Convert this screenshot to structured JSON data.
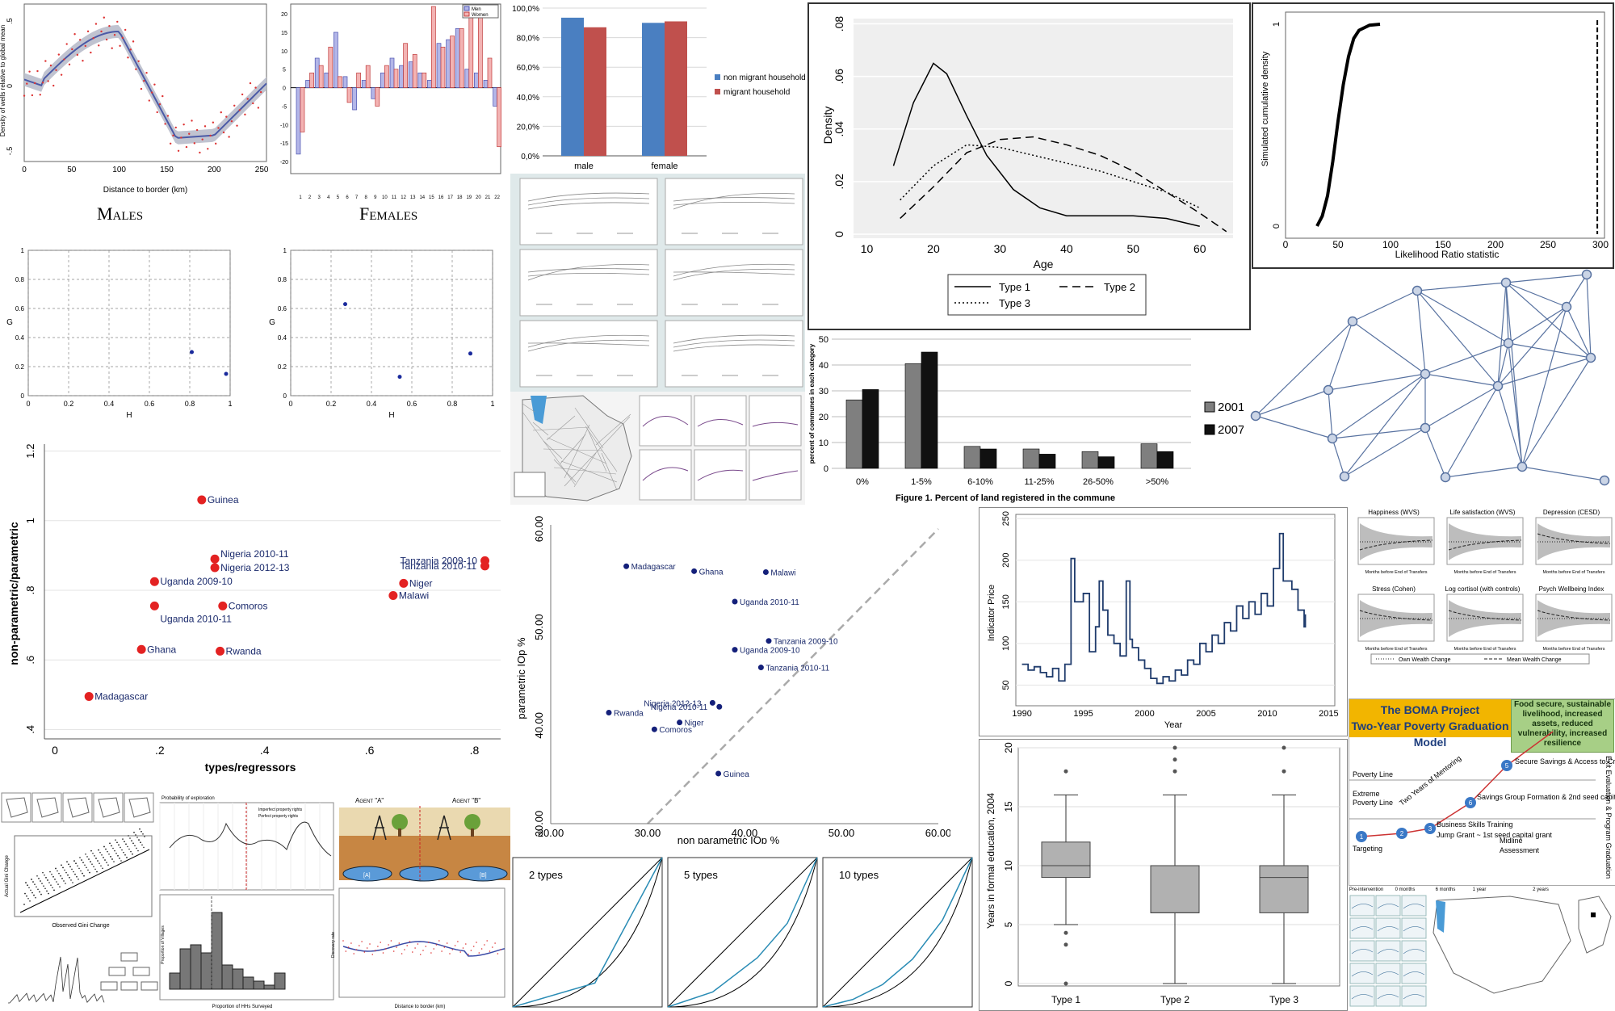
{
  "males_females": {
    "males_title": "Males",
    "females_title": "Females",
    "males_ylabel": "Density of wells relative to global mean",
    "males_xlabel": "Distance to border (km)",
    "males_xticks": [
      "0",
      "50",
      "100",
      "150",
      "200",
      "250"
    ],
    "males_yticks": [
      ".5",
      "0",
      "-.5"
    ],
    "females_legend": [
      "Men",
      "Women"
    ],
    "females_yticks": [
      "20",
      "15",
      "10",
      "5",
      "0",
      "-5",
      "-10",
      "-15",
      "-20"
    ],
    "females_xticks": [
      "1",
      "2",
      "3",
      "4",
      "5",
      "6",
      "7",
      "8",
      "9",
      "10",
      "11",
      "12",
      "13",
      "14",
      "15",
      "16",
      "17",
      "18",
      "19",
      "20",
      "21",
      "22"
    ]
  },
  "chart_data": [
    {
      "id": "migrant-bars",
      "type": "bar",
      "categories": [
        "male",
        "female"
      ],
      "series": [
        {
          "name": "non migrant household",
          "values": [
            93.5,
            90
          ],
          "color": "#4a7fc1"
        },
        {
          "name": "migrant household",
          "values": [
            87,
            91
          ],
          "color": "#c0504d"
        }
      ],
      "yticks": [
        "0,0%",
        "20,0%",
        "40,0%",
        "60,0%",
        "80,0%",
        "100,0%"
      ],
      "ylim": [
        0,
        100
      ]
    },
    {
      "id": "density-age",
      "type": "line",
      "xlabel": "Age",
      "ylabel": "Density",
      "xticks": [
        "10",
        "20",
        "30",
        "40",
        "50",
        "60"
      ],
      "yticks": [
        "0",
        ".02",
        ".04",
        ".06",
        ".08"
      ],
      "xlim": [
        8,
        65
      ],
      "ylim": [
        0,
        0.08
      ],
      "series": [
        {
          "name": "Type 1",
          "dash": "",
          "points": [
            [
              14,
              0.026
            ],
            [
              17,
              0.05
            ],
            [
              20,
              0.065
            ],
            [
              22,
              0.061
            ],
            [
              25,
              0.045
            ],
            [
              28,
              0.03
            ],
            [
              32,
              0.017
            ],
            [
              36,
              0.01
            ],
            [
              40,
              0.007
            ],
            [
              45,
              0.007
            ],
            [
              50,
              0.007
            ],
            [
              55,
              0.006
            ],
            [
              60,
              0.003
            ]
          ]
        },
        {
          "name": "Type 2",
          "dash": "10 6",
          "points": [
            [
              15,
              0.006
            ],
            [
              20,
              0.018
            ],
            [
              25,
              0.031
            ],
            [
              30,
              0.036
            ],
            [
              35,
              0.037
            ],
            [
              40,
              0.034
            ],
            [
              45,
              0.03
            ],
            [
              50,
              0.024
            ],
            [
              55,
              0.016
            ],
            [
              60,
              0.008
            ],
            [
              64,
              0.001
            ]
          ]
        },
        {
          "name": "Type 3",
          "dash": "2 3",
          "points": [
            [
              15,
              0.013
            ],
            [
              20,
              0.026
            ],
            [
              25,
              0.034
            ],
            [
              30,
              0.033
            ],
            [
              35,
              0.03
            ],
            [
              40,
              0.027
            ],
            [
              45,
              0.024
            ],
            [
              50,
              0.02
            ],
            [
              55,
              0.016
            ],
            [
              60,
              0.01
            ]
          ]
        }
      ]
    },
    {
      "id": "lr-cdf",
      "type": "line",
      "xlabel": "Likelihood Ratio statistic",
      "ylabel": "Simulated cumulative density",
      "xticks": [
        "0",
        "50",
        "100",
        "150",
        "200",
        "250",
        "300"
      ],
      "yticks": [
        "0",
        "1"
      ],
      "xlim": [
        0,
        300
      ],
      "ylim": [
        0,
        1
      ],
      "vline": 297,
      "series": [
        {
          "name": "cdf",
          "points": [
            [
              30,
              0
            ],
            [
              35,
              0.05
            ],
            [
              40,
              0.15
            ],
            [
              45,
              0.32
            ],
            [
              50,
              0.52
            ],
            [
              55,
              0.7
            ],
            [
              60,
              0.84
            ],
            [
              65,
              0.93
            ],
            [
              70,
              0.97
            ],
            [
              80,
              0.995
            ],
            [
              90,
              1
            ]
          ]
        }
      ]
    },
    {
      "id": "land-registered",
      "type": "bar",
      "title": "Figure 1. Percent of land registered in the commune",
      "ylabel": "percent of communes in each category",
      "categories": [
        "0%",
        "1-5%",
        "6-10%",
        "11-25%",
        "26-50%",
        ">50%"
      ],
      "series": [
        {
          "name": "2001",
          "values": [
            26.5,
            40.5,
            8.5,
            7.5,
            6.5,
            9.5
          ],
          "color": "#7f7f7f"
        },
        {
          "name": "2007",
          "values": [
            30.5,
            45,
            7.5,
            5.5,
            4.5,
            6.5
          ],
          "color": "#111111"
        }
      ],
      "yticks": [
        "0",
        "10",
        "20",
        "30",
        "40",
        "50"
      ],
      "ylim": [
        0,
        50
      ]
    },
    {
      "id": "iop-types",
      "type": "scatter",
      "xlabel": "types/regressors",
      "ylabel": "non-parametric/parametric",
      "xticks": [
        "0",
        ".2",
        ".4",
        ".6",
        ".8"
      ],
      "yticks": [
        ".4",
        ".6",
        ".8",
        "1",
        "1.2"
      ],
      "xlim": [
        -0.02,
        0.85
      ],
      "ylim": [
        0.38,
        1.22
      ],
      "points": [
        {
          "label": "Guinea",
          "x": 0.28,
          "y": 1.06
        },
        {
          "label": "Nigeria 2010-11",
          "x": 0.305,
          "y": 0.89
        },
        {
          "label": "Nigeria 2012-13",
          "x": 0.305,
          "y": 0.865
        },
        {
          "label": "Uganda 2009-10",
          "x": 0.19,
          "y": 0.825
        },
        {
          "label": "Uganda 2010-11",
          "x": 0.19,
          "y": 0.755
        },
        {
          "label": "Comoros",
          "x": 0.32,
          "y": 0.755
        },
        {
          "label": "Ghana",
          "x": 0.165,
          "y": 0.63
        },
        {
          "label": "Rwanda",
          "x": 0.315,
          "y": 0.625
        },
        {
          "label": "Madagascar",
          "x": 0.065,
          "y": 0.495
        },
        {
          "label": "Tanzania 2009-10",
          "x": 0.82,
          "y": 0.885
        },
        {
          "label": "Tanzania 2010-11",
          "x": 0.82,
          "y": 0.87
        },
        {
          "label": "Niger",
          "x": 0.665,
          "y": 0.82
        },
        {
          "label": "Malawi",
          "x": 0.645,
          "y": 0.785
        }
      ]
    },
    {
      "id": "iop-compare",
      "type": "scatter",
      "xlabel": "non parametric IOp %",
      "ylabel": "parametric IOp %",
      "xticks": [
        "20.00",
        "30.00",
        "40.00",
        "50.00",
        "60.00"
      ],
      "yticks": [
        "30.00",
        "40.00",
        "50.00",
        "60.00"
      ],
      "xlim": [
        20,
        60
      ],
      "ylim": [
        30,
        60
      ],
      "points": [
        {
          "label": "Madagascar",
          "x": 27.8,
          "y": 56.2
        },
        {
          "label": "Ghana",
          "x": 34.8,
          "y": 55.7
        },
        {
          "label": "Malawi",
          "x": 42.2,
          "y": 55.6
        },
        {
          "label": "Uganda 2010-11",
          "x": 39,
          "y": 52.6
        },
        {
          "label": "Tanzania 2009-10",
          "x": 42.5,
          "y": 48.6
        },
        {
          "label": "Uganda 2009-10",
          "x": 39,
          "y": 47.7
        },
        {
          "label": "Tanzania 2010-11",
          "x": 41.7,
          "y": 45.9
        },
        {
          "label": "Nigeria 2012-13",
          "x": 36.7,
          "y": 42.3
        },
        {
          "label": "Nigeria 2010-11",
          "x": 37.4,
          "y": 41.9
        },
        {
          "label": "Rwanda",
          "x": 26,
          "y": 41.3
        },
        {
          "label": "Niger",
          "x": 33.3,
          "y": 40.3
        },
        {
          "label": "Comoros",
          "x": 30.7,
          "y": 39.6
        },
        {
          "label": "Guinea",
          "x": 37.3,
          "y": 35.1
        }
      ]
    },
    {
      "id": "indicator-price",
      "type": "line",
      "xlabel": "Year",
      "ylabel": "Indicator Price",
      "xticks": [
        "1990",
        "1995",
        "2000",
        "2005",
        "2010",
        "2015"
      ],
      "yticks": [
        "50",
        "100",
        "150",
        "200",
        "250"
      ],
      "xlim": [
        1989.5,
        2015.5
      ],
      "ylim": [
        30,
        255
      ],
      "series": [
        {
          "name": "price",
          "points": [
            [
              1990,
              75
            ],
            [
              1990.5,
              68
            ],
            [
              1991,
              72
            ],
            [
              1991.5,
              65
            ],
            [
              1992,
              60
            ],
            [
              1992.5,
              70
            ],
            [
              1993,
              55
            ],
            [
              1993.5,
              75
            ],
            [
              1994,
              202
            ],
            [
              1994.3,
              150
            ],
            [
              1995,
              160
            ],
            [
              1995.5,
              90
            ],
            [
              1996,
              120
            ],
            [
              1996.3,
              175
            ],
            [
              1996.6,
              140
            ],
            [
              1997,
              110
            ],
            [
              1997.5,
              100
            ],
            [
              1998,
              85
            ],
            [
              1998.5,
              175
            ],
            [
              1998.8,
              105
            ],
            [
              1999,
              95
            ],
            [
              1999.5,
              80
            ],
            [
              2000,
              70
            ],
            [
              2000.5,
              58
            ],
            [
              2001,
              52
            ],
            [
              2001.5,
              60
            ],
            [
              2002,
              55
            ],
            [
              2002.5,
              68
            ],
            [
              2003,
              62
            ],
            [
              2003.5,
              80
            ],
            [
              2004,
              75
            ],
            [
              2004.5,
              100
            ],
            [
              2005,
              90
            ],
            [
              2005.5,
              110
            ],
            [
              2006,
              100
            ],
            [
              2006.5,
              125
            ],
            [
              2007,
              115
            ],
            [
              2007.5,
              145
            ],
            [
              2008,
              130
            ],
            [
              2008.5,
              150
            ],
            [
              2009,
              135
            ],
            [
              2009.5,
              160
            ],
            [
              2010,
              145
            ],
            [
              2010.5,
              190
            ],
            [
              2011,
              232
            ],
            [
              2011.3,
              175
            ],
            [
              2012,
              165
            ],
            [
              2012.5,
              140
            ],
            [
              2013,
              120
            ],
            [
              2013.1,
              135
            ]
          ]
        }
      ]
    },
    {
      "id": "years-education",
      "type": "boxplot",
      "ylabel": "Years in formal education, 2004",
      "categories": [
        "Type 1",
        "Type 2",
        "Type 3"
      ],
      "yticks": [
        "0",
        "5",
        "10",
        "15",
        "20"
      ],
      "ylim": [
        0,
        20
      ],
      "boxes": [
        {
          "min": 5,
          "q1": 9,
          "median": 10,
          "q3": 12,
          "max": 16,
          "outliers": [
            18,
            4.3,
            3.3,
            0
          ]
        },
        {
          "min": 0,
          "q1": 6,
          "median": 6,
          "q3": 10,
          "max": 16,
          "outliers": [
            20,
            19,
            18
          ]
        },
        {
          "min": 0,
          "q1": 6,
          "median": 9,
          "q3": 10,
          "max": 16,
          "outliers": [
            20,
            18
          ]
        }
      ]
    },
    {
      "id": "gh-left",
      "type": "scatter",
      "xlabel": "H",
      "ylabel": "G",
      "xticks": [
        "0",
        "0.2",
        "0.4",
        "0.6",
        "0.8",
        "1"
      ],
      "yticks": [
        "0",
        "0.2",
        "0.4",
        "0.6",
        "0.8",
        "1"
      ],
      "points": [
        {
          "x": 0.81,
          "y": 0.3
        },
        {
          "x": 0.98,
          "y": 0.15
        }
      ]
    },
    {
      "id": "gh-right",
      "type": "scatter",
      "xlabel": "H",
      "ylabel": "G",
      "xticks": [
        "0",
        "0.2",
        "0.4",
        "0.6",
        "0.8",
        "1"
      ],
      "yticks": [
        "0",
        "0.2",
        "0.4",
        "0.6",
        "0.8",
        "1"
      ],
      "points": [
        {
          "x": 0.27,
          "y": 0.63
        },
        {
          "x": 0.54,
          "y": 0.13
        },
        {
          "x": 0.89,
          "y": 0.29
        }
      ]
    }
  ],
  "lorenz": [
    {
      "label": "2 types",
      "points": [
        [
          0,
          0
        ],
        [
          0.55,
          0.16
        ],
        [
          1,
          1
        ]
      ]
    },
    {
      "label": "5 types",
      "points": [
        [
          0,
          0
        ],
        [
          0.3,
          0.1
        ],
        [
          0.6,
          0.33
        ],
        [
          0.8,
          0.56
        ],
        [
          1,
          1
        ]
      ]
    },
    {
      "label": "10 types",
      "points": [
        [
          0,
          0
        ],
        [
          0.2,
          0.05
        ],
        [
          0.4,
          0.15
        ],
        [
          0.6,
          0.32
        ],
        [
          0.8,
          0.58
        ],
        [
          1,
          1
        ]
      ]
    }
  ],
  "legend_2001": "2001",
  "legend_2007": "2007",
  "wellbeing": {
    "titles": [
      "Happiness (WVS)",
      "Life satisfaction (WVS)",
      "Depression (CESD)",
      "Stress (Cohen)",
      "Log cortisol (with controls)",
      "Psych Wellbeing Index"
    ],
    "xlabel": "Months before End of Transfers",
    "legend": [
      "Own Wealth Change",
      "Mean Wealth Change"
    ]
  },
  "boma": {
    "title": "The BOMA Project\nTwo-Year Poverty Graduation Model",
    "goal": "Food secure, sustainable livelihood, increased assets, reduced vulnerability, increased resilience",
    "exit": "Exit Evaluation & Program Graduation",
    "poverty_line": "Poverty Line",
    "extreme_line": "Extreme\nPoverty Line",
    "mentoring": "Two Years of Mentoring",
    "steps": [
      "Targeting",
      "Business Skills Training",
      "Jump Grant ~ 1st seed capital grant",
      "Savings Group Formation & 2nd seed capital grant",
      "Secure Savings & Access to Credit"
    ],
    "midline": "Midline\nAssessment",
    "timeline": [
      "Pre-intervention",
      "0 months",
      "6 months",
      "1 year",
      "2 years"
    ]
  },
  "agents": {
    "a": "Agent \"A\"",
    "b": "Agent \"B\"",
    "rect_labels": [
      "[A]",
      "[B]"
    ]
  },
  "small": {
    "gini_xlabel": "Observed Gini Change",
    "gini_ylabel": "Actual Gini Change",
    "hh_xlabel": "Proportion of HHs Surveyed",
    "hh_ylabel": "Proportion of Villages",
    "disc_xlabel": "Distance to border (km)",
    "disc_ylabel": "Discovery rate",
    "prob_title": "Probability of exploration",
    "prob_legend": [
      "Imperfect property rights",
      "Perfect property rights"
    ]
  }
}
